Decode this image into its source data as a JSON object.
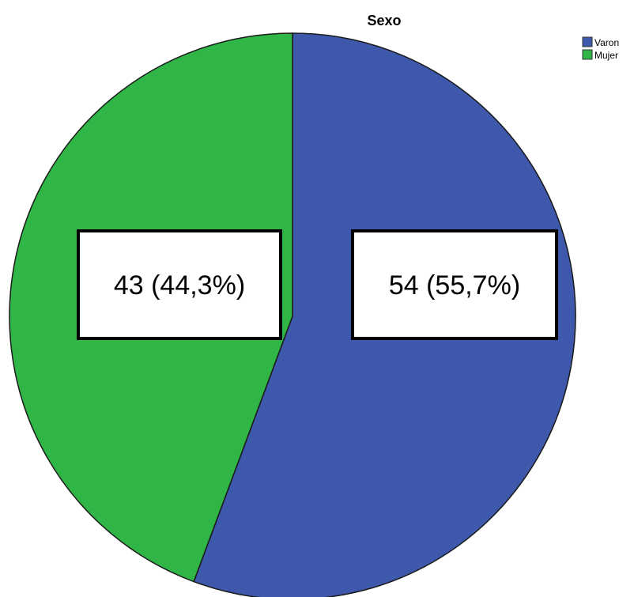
{
  "chart_data": {
    "type": "pie",
    "title": "Sexo",
    "legend_position": "top-right",
    "slices": [
      {
        "name": "Varon",
        "value": 54,
        "percent": "55,7%",
        "label": "54 (55,7%)",
        "color": "#3e58ac"
      },
      {
        "name": "Mujer",
        "value": 43,
        "percent": "44,3%",
        "label": "43 (44,3%)",
        "color": "#2fb646"
      }
    ]
  }
}
